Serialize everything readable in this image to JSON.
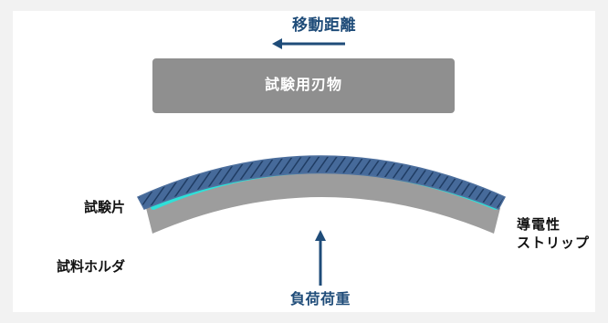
{
  "labels": {
    "movement_distance": "移動距離",
    "test_blade": "試験用刃物",
    "test_piece": "試験片",
    "sample_holder": "試料ホルダ",
    "conductive_strip_line1": "導電性",
    "conductive_strip_line2": "ストリップ",
    "load": "負荷荷重"
  },
  "colors": {
    "page_background": "#f2f2f2",
    "panel_background": "#ffffff",
    "blade_fill": "#8f8f8f",
    "holder_fill": "#9d9d9d",
    "conductive_strip": "#2fe0d8",
    "test_piece_fill": "#466a9a",
    "test_piece_hatch": "#1f3c63",
    "arrow": "#1f4c79",
    "text_dark": "#111111",
    "text_blue": "#1f4c79",
    "text_light": "#ffffff"
  },
  "icons": {
    "movement_arrow": "left-arrow-icon",
    "load_arrow": "up-arrow-icon"
  }
}
